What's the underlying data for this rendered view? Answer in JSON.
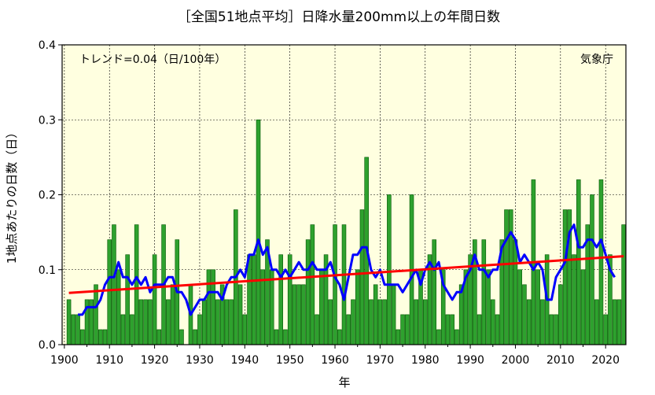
{
  "chart_data": {
    "type": "bar",
    "title": "［全国51地点平均］日降水量200mm以上の年間日数",
    "ylabel": "1地点あたりの日数（日）",
    "xlabel": "年",
    "annotation_trend": "トレンド=0.04（日/100年）",
    "annotation_source": "気象庁",
    "xlim": [
      1899.5,
      2024.5
    ],
    "ylim": [
      0,
      0.4
    ],
    "x_ticks": [
      "1900",
      "1910",
      "1920",
      "1930",
      "1940",
      "1950",
      "1960",
      "1970",
      "1980",
      "1990",
      "2000",
      "2010",
      "2020"
    ],
    "y_ticks": [
      "0.0",
      "0.1",
      "0.2",
      "0.3",
      "0.4"
    ],
    "grid": true,
    "colors": {
      "background": "#FFFFE0",
      "bar_fill": "#2EA12E",
      "bar_stroke": "#005500",
      "moving_average": "#0000FF",
      "trend": "#FF0000",
      "grid": "#000000"
    },
    "years": [
      1901,
      1902,
      1903,
      1904,
      1905,
      1906,
      1907,
      1908,
      1909,
      1910,
      1911,
      1912,
      1913,
      1914,
      1915,
      1916,
      1917,
      1918,
      1919,
      1920,
      1921,
      1922,
      1923,
      1924,
      1925,
      1926,
      1927,
      1928,
      1929,
      1930,
      1931,
      1932,
      1933,
      1934,
      1935,
      1936,
      1937,
      1938,
      1939,
      1940,
      1941,
      1942,
      1943,
      1944,
      1945,
      1946,
      1947,
      1948,
      1949,
      1950,
      1951,
      1952,
      1953,
      1954,
      1955,
      1956,
      1957,
      1958,
      1959,
      1960,
      1961,
      1962,
      1963,
      1964,
      1965,
      1966,
      1967,
      1968,
      1969,
      1970,
      1971,
      1972,
      1973,
      1974,
      1975,
      1976,
      1977,
      1978,
      1979,
      1980,
      1981,
      1982,
      1983,
      1984,
      1985,
      1986,
      1987,
      1988,
      1989,
      1990,
      1991,
      1992,
      1993,
      1994,
      1995,
      1996,
      1997,
      1998,
      1999,
      2000,
      2001,
      2002,
      2003,
      2004,
      2005,
      2006,
      2007,
      2008,
      2009,
      2010,
      2011,
      2012,
      2013,
      2014,
      2015,
      2016,
      2017,
      2018,
      2019,
      2020,
      2021,
      2022,
      2023,
      2024
    ],
    "values": [
      0.06,
      0.04,
      0.04,
      0.02,
      0.06,
      0.06,
      0.08,
      0.02,
      0.02,
      0.14,
      0.16,
      0.1,
      0.04,
      0.12,
      0.04,
      0.16,
      0.06,
      0.06,
      0.06,
      0.12,
      0.02,
      0.16,
      0.06,
      0.08,
      0.14,
      0.02,
      0.0,
      0.08,
      0.02,
      0.04,
      0.06,
      0.1,
      0.1,
      0.06,
      0.08,
      0.06,
      0.06,
      0.18,
      0.08,
      0.04,
      0.12,
      0.12,
      0.3,
      0.1,
      0.14,
      0.1,
      0.02,
      0.12,
      0.02,
      0.12,
      0.08,
      0.08,
      0.08,
      0.14,
      0.16,
      0.04,
      0.1,
      0.12,
      0.06,
      0.16,
      0.02,
      0.16,
      0.04,
      0.06,
      0.1,
      0.18,
      0.25,
      0.06,
      0.08,
      0.06,
      0.06,
      0.2,
      0.08,
      0.02,
      0.04,
      0.04,
      0.2,
      0.06,
      0.1,
      0.06,
      0.12,
      0.14,
      0.02,
      0.1,
      0.04,
      0.04,
      0.02,
      0.08,
      0.1,
      0.12,
      0.14,
      0.04,
      0.14,
      0.1,
      0.06,
      0.04,
      0.14,
      0.18,
      0.18,
      0.14,
      0.1,
      0.08,
      0.06,
      0.22,
      0.1,
      0.06,
      0.12,
      0.04,
      0.04,
      0.08,
      0.18,
      0.18,
      0.12,
      0.22,
      0.1,
      0.16,
      0.2,
      0.06,
      0.22,
      0.04,
      0.12,
      0.06,
      0.06,
      0.16
    ],
    "moving_average_years": [
      1903,
      1904,
      1905,
      1906,
      1907,
      1908,
      1909,
      1910,
      1911,
      1912,
      1913,
      1914,
      1915,
      1916,
      1917,
      1918,
      1919,
      1920,
      1921,
      1922,
      1923,
      1924,
      1925,
      1926,
      1927,
      1928,
      1929,
      1930,
      1931,
      1932,
      1933,
      1934,
      1935,
      1936,
      1937,
      1938,
      1939,
      1940,
      1941,
      1942,
      1943,
      1944,
      1945,
      1946,
      1947,
      1948,
      1949,
      1950,
      1951,
      1952,
      1953,
      1954,
      1955,
      1956,
      1957,
      1958,
      1959,
      1960,
      1961,
      1962,
      1963,
      1964,
      1965,
      1966,
      1967,
      1968,
      1969,
      1970,
      1971,
      1972,
      1973,
      1974,
      1975,
      1976,
      1977,
      1978,
      1979,
      1980,
      1981,
      1982,
      1983,
      1984,
      1985,
      1986,
      1987,
      1988,
      1989,
      1990,
      1991,
      1992,
      1993,
      1994,
      1995,
      1996,
      1997,
      1998,
      1999,
      2000,
      2001,
      2002,
      2003,
      2004,
      2005,
      2006,
      2007,
      2008,
      2009,
      2010,
      2011,
      2012,
      2013,
      2014,
      2015,
      2016,
      2017,
      2018,
      2019,
      2020,
      2021,
      2022
    ],
    "moving_average": [
      0.04,
      0.04,
      0.05,
      0.05,
      0.05,
      0.06,
      0.08,
      0.09,
      0.09,
      0.11,
      0.09,
      0.09,
      0.08,
      0.09,
      0.08,
      0.09,
      0.07,
      0.08,
      0.08,
      0.08,
      0.09,
      0.09,
      0.07,
      0.07,
      0.06,
      0.04,
      0.05,
      0.06,
      0.06,
      0.07,
      0.07,
      0.07,
      0.06,
      0.08,
      0.09,
      0.09,
      0.1,
      0.09,
      0.12,
      0.12,
      0.14,
      0.12,
      0.13,
      0.1,
      0.1,
      0.09,
      0.1,
      0.09,
      0.1,
      0.11,
      0.1,
      0.1,
      0.11,
      0.1,
      0.1,
      0.1,
      0.11,
      0.09,
      0.08,
      0.06,
      0.09,
      0.12,
      0.12,
      0.13,
      0.13,
      0.1,
      0.09,
      0.1,
      0.08,
      0.08,
      0.08,
      0.08,
      0.07,
      0.08,
      0.09,
      0.1,
      0.08,
      0.1,
      0.11,
      0.1,
      0.11,
      0.08,
      0.07,
      0.06,
      0.07,
      0.07,
      0.09,
      0.1,
      0.12,
      0.1,
      0.1,
      0.09,
      0.1,
      0.1,
      0.13,
      0.14,
      0.15,
      0.14,
      0.11,
      0.12,
      0.11,
      0.1,
      0.11,
      0.1,
      0.06,
      0.06,
      0.09,
      0.1,
      0.11,
      0.15,
      0.16,
      0.13,
      0.13,
      0.14,
      0.14,
      0.13,
      0.14,
      0.12,
      0.1,
      0.09
    ],
    "trend_line": {
      "x": [
        1901,
        2024
      ],
      "y": [
        0.069,
        0.118
      ]
    }
  }
}
